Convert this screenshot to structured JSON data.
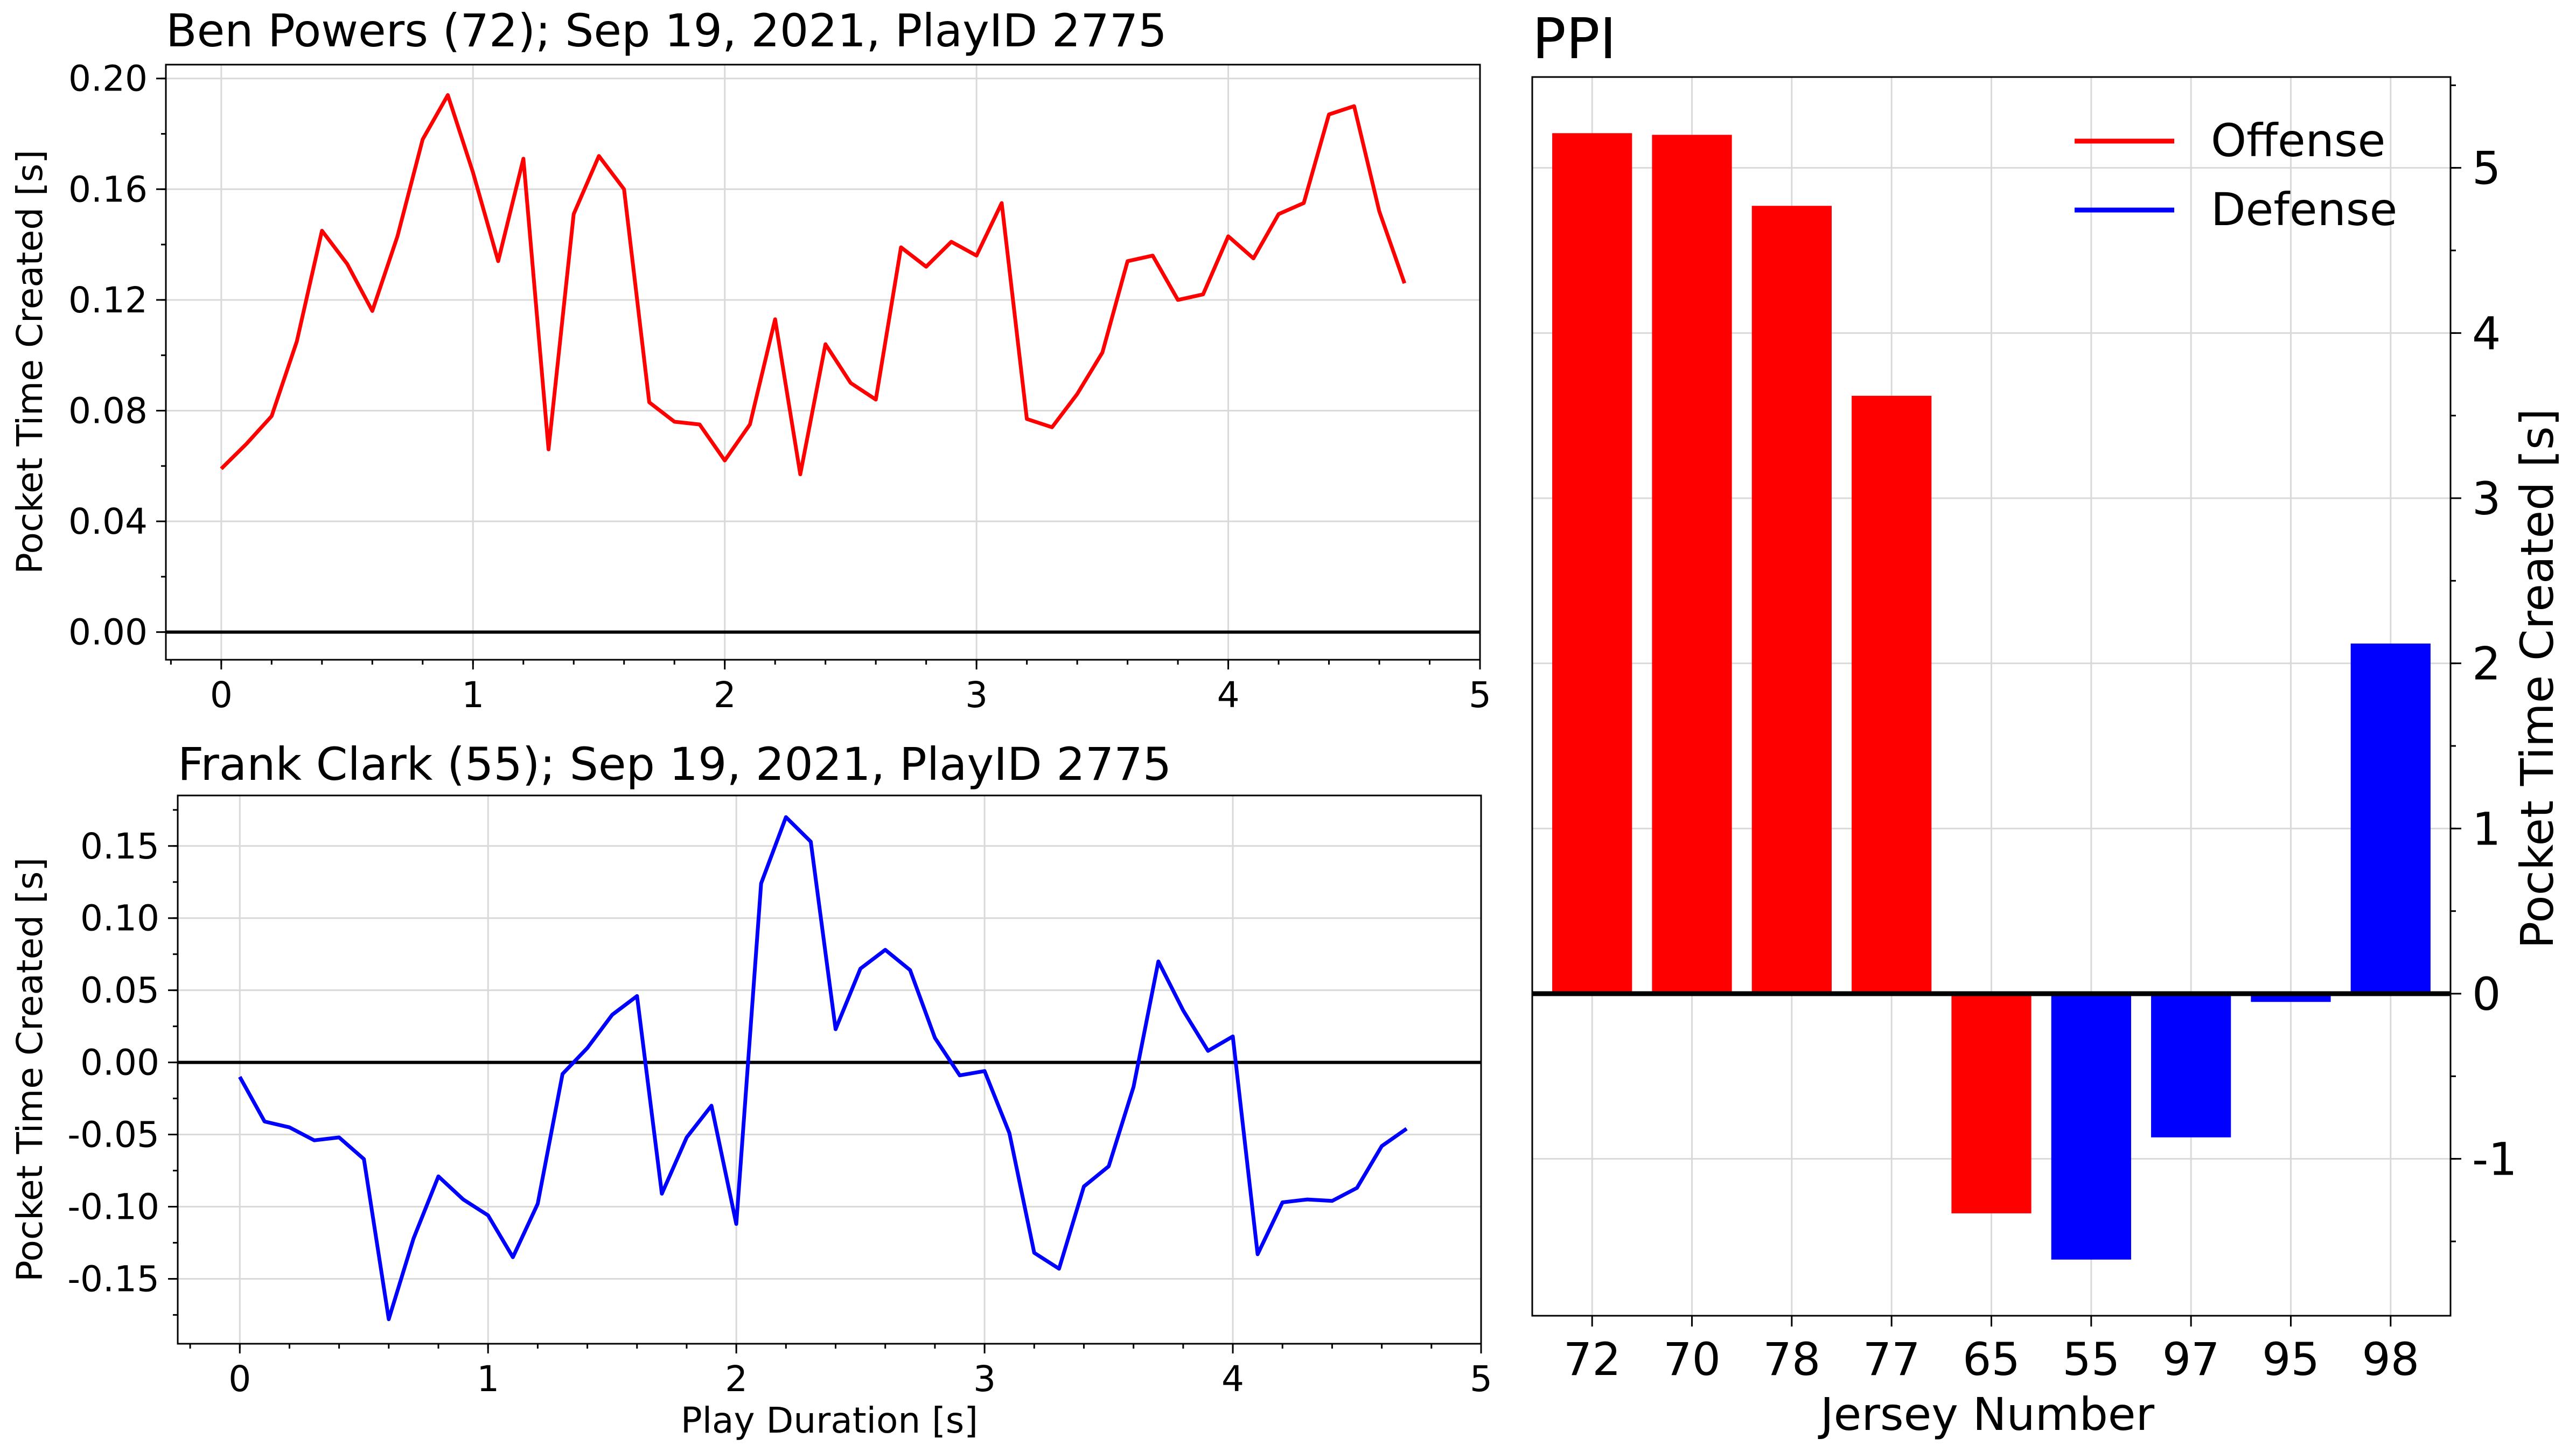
{
  "chart_data": [
    {
      "type": "line",
      "title": "Ben Powers (72); Sep 19, 2021, PlayID 2775",
      "xlabel": "",
      "ylabel": "Pocket Time Created [s]",
      "xlim": [
        -0.22,
        5
      ],
      "ylim": [
        -0.01,
        0.205
      ],
      "xticks": [
        "0",
        "1",
        "2",
        "3",
        "4",
        "5"
      ],
      "yticks": [
        "0.00",
        "0.04",
        "0.08",
        "0.12",
        "0.16",
        "0.20"
      ],
      "grid": true,
      "line_color": "#ff0000",
      "x": [
        0,
        0.1,
        0.2,
        0.3,
        0.4,
        0.5,
        0.6,
        0.7,
        0.8,
        0.9,
        1.0,
        1.1,
        1.2,
        1.3,
        1.4,
        1.5,
        1.6,
        1.7,
        1.8,
        1.9,
        2.0,
        2.1,
        2.2,
        2.3,
        2.4,
        2.5,
        2.6,
        2.7,
        2.8,
        2.9,
        3.0,
        3.1,
        3.2,
        3.3,
        3.4,
        3.5,
        3.6,
        3.7,
        3.8,
        3.9,
        4.0,
        4.1,
        4.2,
        4.3,
        4.4,
        4.5,
        4.6,
        4.7
      ],
      "y": [
        0.059,
        0.068,
        0.078,
        0.105,
        0.145,
        0.133,
        0.116,
        0.143,
        0.178,
        0.194,
        0.166,
        0.134,
        0.171,
        0.066,
        0.151,
        0.172,
        0.16,
        0.083,
        0.076,
        0.075,
        0.062,
        0.075,
        0.113,
        0.057,
        0.104,
        0.09,
        0.084,
        0.139,
        0.132,
        0.141,
        0.136,
        0.155,
        0.077,
        0.074,
        0.086,
        0.101,
        0.134,
        0.136,
        0.12,
        0.122,
        0.143,
        0.135,
        0.151,
        0.155,
        0.187,
        0.19,
        0.152,
        0.126
      ]
    },
    {
      "type": "line",
      "title": "Frank Clark (55); Sep 19, 2021, PlayID 2775",
      "xlabel": "Play Duration [s]",
      "ylabel": "Pocket Time Created [s]",
      "xlim": [
        -0.25,
        5
      ],
      "ylim": [
        -0.195,
        0.185
      ],
      "xticks": [
        "0",
        "1",
        "2",
        "3",
        "4",
        "5"
      ],
      "yticks": [
        "-0.15",
        "-0.10",
        "-0.05",
        "0.00",
        "0.05",
        "0.10",
        "0.15"
      ],
      "grid": true,
      "line_color": "#0000ff",
      "x": [
        0,
        0.1,
        0.2,
        0.3,
        0.4,
        0.5,
        0.6,
        0.7,
        0.8,
        0.9,
        1.0,
        1.1,
        1.2,
        1.3,
        1.4,
        1.5,
        1.6,
        1.7,
        1.8,
        1.9,
        2.0,
        2.1,
        2.2,
        2.3,
        2.4,
        2.5,
        2.6,
        2.7,
        2.8,
        2.9,
        3.0,
        3.1,
        3.2,
        3.3,
        3.4,
        3.5,
        3.6,
        3.7,
        3.8,
        3.9,
        4.0,
        4.1,
        4.2,
        4.3,
        4.4,
        4.5,
        4.6,
        4.7
      ],
      "y": [
        -0.01,
        -0.041,
        -0.045,
        -0.054,
        -0.052,
        -0.067,
        -0.178,
        -0.122,
        -0.079,
        -0.095,
        -0.106,
        -0.135,
        -0.098,
        -0.008,
        0.01,
        0.033,
        0.046,
        -0.091,
        -0.052,
        -0.03,
        -0.112,
        0.124,
        0.17,
        0.153,
        0.023,
        0.065,
        0.078,
        0.064,
        0.017,
        -0.009,
        -0.006,
        -0.049,
        -0.132,
        -0.143,
        -0.086,
        -0.072,
        -0.017,
        0.07,
        0.036,
        0.008,
        0.018,
        -0.133,
        -0.097,
        -0.095,
        -0.096,
        -0.087,
        -0.058,
        -0.046
      ]
    },
    {
      "type": "bar",
      "title": "PPI",
      "xlabel": "Jersey Number",
      "ylabel": "Pocket Time Created [s]",
      "ylim": [
        -1.95,
        5.55
      ],
      "yticks": [
        "-1",
        "0",
        "1",
        "2",
        "3",
        "4",
        "5"
      ],
      "y_axis_side": "right",
      "grid": true,
      "legend_position": "top-right",
      "series": [
        {
          "name": "Offense",
          "color": "#ff0000"
        },
        {
          "name": "Defense",
          "color": "#0000ff"
        }
      ],
      "categories": [
        "72",
        "70",
        "78",
        "77",
        "65",
        "55",
        "97",
        "95",
        "98"
      ],
      "values": [
        5.21,
        5.2,
        4.77,
        3.62,
        -1.33,
        -1.61,
        -0.87,
        -0.05,
        2.12
      ],
      "bar_colors": [
        "#ff0000",
        "#ff0000",
        "#ff0000",
        "#ff0000",
        "#ff0000",
        "#0000ff",
        "#0000ff",
        "#0000ff",
        "#0000ff"
      ]
    }
  ]
}
